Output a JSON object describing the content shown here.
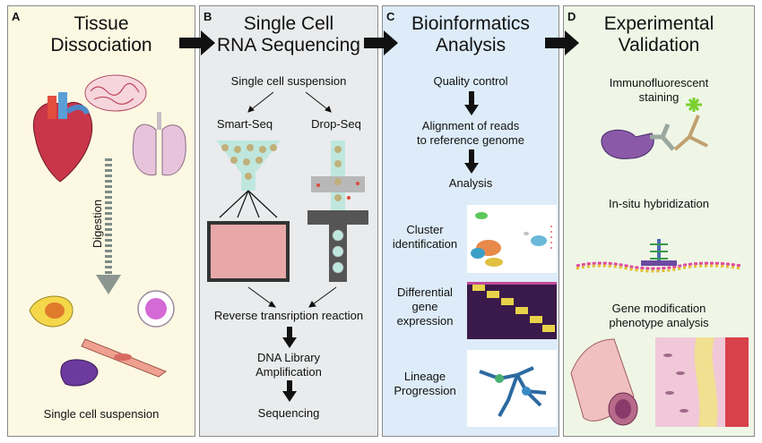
{
  "panels": {
    "a": {
      "letter": "A",
      "title": "Tissue\nDissociation",
      "digestion": "Digestion",
      "result": "Single cell suspension"
    },
    "b": {
      "letter": "B",
      "title": "Single Cell\nRNA Sequencing",
      "suspension": "Single cell suspension",
      "smart_seq": "Smart-Seq",
      "drop_seq": "Drop-Seq",
      "reverse": "Reverse transription reaction",
      "library": "DNA Library\nAmplification",
      "sequencing": "Sequencing"
    },
    "c": {
      "letter": "C",
      "title": "Bioinformatics\nAnalysis",
      "quality": "Quality control",
      "alignment": "Alignment of reads\nto reference genome",
      "analysis": "Analysis",
      "cluster": "Cluster\nidentification",
      "differential": "Differential\ngene\nexpression",
      "lineage": "Lineage\nProgression"
    },
    "d": {
      "letter": "D",
      "title": "Experimental\nValidation",
      "immuno": "Immunofluorescent\nstaining",
      "insitu": "In-situ hybridization",
      "genemod": "Gene modification\nphenotype analysis"
    }
  },
  "colors": {
    "panel_a": "#fdf8e2",
    "panel_b": "#e9ebec",
    "panel_c": "#ddecf8",
    "panel_d": "#eff6e6",
    "arrow": "#111111"
  }
}
